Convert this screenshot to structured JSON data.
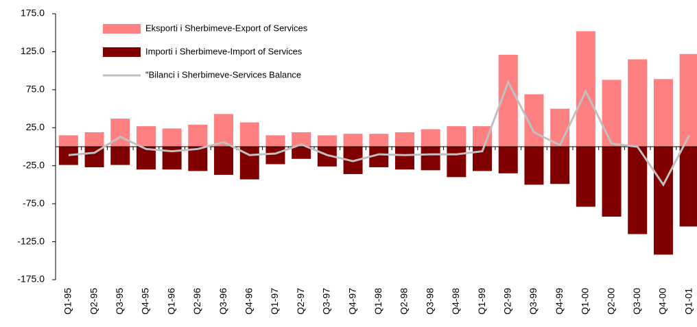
{
  "chart_data": {
    "type": "bar_line",
    "categories": [
      "Q1-95",
      "Q2-95",
      "Q3-95",
      "Q4-95",
      "Q1-96",
      "Q2-96",
      "Q3-96",
      "Q4-96",
      "Q1-97",
      "Q2-97",
      "Q3-97",
      "Q4-97",
      "Q1-98",
      "Q2-98",
      "Q3-98",
      "Q4-98",
      "Q1-99",
      "Q2-99",
      "Q3-99",
      "Q4-99",
      "Q1-00",
      "Q2-00",
      "Q3-00",
      "Q4-00",
      "Q1-01"
    ],
    "series": [
      {
        "name": "Eksporti i Sherbimeve-Export of Services",
        "type": "bar",
        "color": "#ff8080",
        "values": [
          15,
          19,
          37,
          27,
          24,
          29,
          43,
          32,
          15,
          19,
          15,
          17,
          17,
          19,
          23,
          27,
          27,
          121,
          69,
          50,
          152,
          88,
          115,
          89,
          122
        ]
      },
      {
        "name": "Importi i Sherbimeve-Import of Services",
        "type": "bar",
        "color": "#800000",
        "values": [
          -24,
          -27,
          -24,
          -30,
          -30,
          -32,
          -37,
          -43,
          -23,
          -16,
          -26,
          -36,
          -27,
          -30,
          -31,
          -40,
          -32,
          -35,
          -50,
          -49,
          -79,
          -92,
          -115,
          -142,
          -105
        ]
      },
      {
        "name": "\"Bilanci i Sherbimeve-Services Balance",
        "type": "line",
        "color": "#c0c0c0",
        "values": [
          -11,
          -8,
          13,
          -3,
          -6,
          -3,
          6,
          -11,
          -9,
          3,
          -11,
          -19,
          -10,
          -11,
          -10,
          -10,
          -6,
          85,
          19,
          2,
          73,
          4,
          0,
          -50,
          15
        ]
      }
    ],
    "ylim": [
      -175,
      175
    ],
    "yticks": [
      {
        "value": -175,
        "label": "-175.0"
      },
      {
        "value": -125,
        "label": "-125.0"
      },
      {
        "value": -75,
        "label": "-75.0"
      },
      {
        "value": -25,
        "label": "-25.0"
      },
      {
        "value": 25,
        "label": "25.0"
      },
      {
        "value": 75,
        "label": "75.0"
      },
      {
        "value": 125,
        "label": "125.0"
      },
      {
        "value": 175,
        "label": "175.0"
      }
    ],
    "legend": "top-left"
  }
}
